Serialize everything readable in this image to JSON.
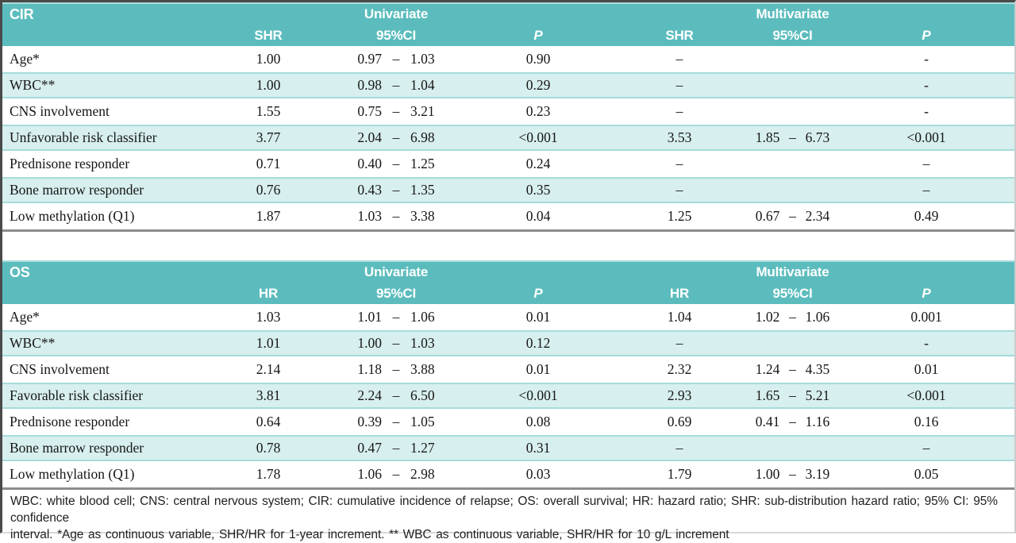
{
  "colors": {
    "header_teal": "#5cbcbd",
    "header_top_edge": "#a9dcdc",
    "shaded_row_bg": "#d7efee",
    "shaded_row_border": "#a5dbda",
    "table_bottom_rule": "#8d8d8d",
    "header_text": "#ffffff",
    "body_text": "#161616"
  },
  "tables": [
    {
      "title": "CIR",
      "univariate_label": "Univariate",
      "multivariate_label": "Multivariate",
      "estimate_header": "SHR",
      "ci_header": "95%CI",
      "p_header": "P",
      "rows": [
        {
          "label": "Age*",
          "shaded": false,
          "uni": {
            "est": "1.00",
            "ci_low": "0.97",
            "ci_dash": "–",
            "ci_high": "1.03",
            "p": "0.90"
          },
          "multi": {
            "est": "–",
            "ci_low": "",
            "ci_dash": "",
            "ci_high": "",
            "p": "-"
          }
        },
        {
          "label": "WBC**",
          "shaded": true,
          "uni": {
            "est": "1.00",
            "ci_low": "0.98",
            "ci_dash": "–",
            "ci_high": "1.04",
            "p": "0.29"
          },
          "multi": {
            "est": "–",
            "ci_low": "",
            "ci_dash": "",
            "ci_high": "",
            "p": "-"
          }
        },
        {
          "label": "CNS involvement",
          "shaded": false,
          "uni": {
            "est": "1.55",
            "ci_low": "0.75",
            "ci_dash": "–",
            "ci_high": "3.21",
            "p": "0.23"
          },
          "multi": {
            "est": "–",
            "ci_low": "",
            "ci_dash": "",
            "ci_high": "",
            "p": "-"
          }
        },
        {
          "label": "Unfavorable risk classifier",
          "shaded": true,
          "uni": {
            "est": "3.77",
            "ci_low": "2.04",
            "ci_dash": "–",
            "ci_high": "6.98",
            "p": "<0.001"
          },
          "multi": {
            "est": "3.53",
            "ci_low": "1.85",
            "ci_dash": "–",
            "ci_high": "6.73",
            "p": "<0.001"
          }
        },
        {
          "label": "Prednisone responder",
          "shaded": false,
          "uni": {
            "est": "0.71",
            "ci_low": "0.40",
            "ci_dash": "–",
            "ci_high": "1.25",
            "p": "0.24"
          },
          "multi": {
            "est": "–",
            "ci_low": "",
            "ci_dash": "",
            "ci_high": "",
            "p": "–"
          }
        },
        {
          "label": "Bone marrow responder",
          "shaded": true,
          "uni": {
            "est": "0.76",
            "ci_low": "0.43",
            "ci_dash": "–",
            "ci_high": "1.35",
            "p": "0.35"
          },
          "multi": {
            "est": "–",
            "ci_low": "",
            "ci_dash": "",
            "ci_high": "",
            "p": "–"
          }
        },
        {
          "label": "Low methylation (Q1)",
          "shaded": false,
          "uni": {
            "est": "1.87",
            "ci_low": "1.03",
            "ci_dash": "–",
            "ci_high": "3.38",
            "p": "0.04"
          },
          "multi": {
            "est": "1.25",
            "ci_low": "0.67",
            "ci_dash": "–",
            "ci_high": "2.34",
            "p": "0.49"
          }
        }
      ]
    },
    {
      "title": "OS",
      "univariate_label": "Univariate",
      "multivariate_label": "Multivariate",
      "estimate_header": "HR",
      "ci_header": "95%CI",
      "p_header": "P",
      "rows": [
        {
          "label": "Age*",
          "shaded": false,
          "uni": {
            "est": "1.03",
            "ci_low": "1.01",
            "ci_dash": "–",
            "ci_high": "1.06",
            "p": "0.01"
          },
          "multi": {
            "est": "1.04",
            "ci_low": "1.02",
            "ci_dash": "–",
            "ci_high": "1.06",
            "p": "0.001"
          }
        },
        {
          "label": "WBC**",
          "shaded": true,
          "uni": {
            "est": "1.01",
            "ci_low": "1.00",
            "ci_dash": "–",
            "ci_high": "1.03",
            "p": "0.12"
          },
          "multi": {
            "est": "–",
            "ci_low": "",
            "ci_dash": "",
            "ci_high": "",
            "p": "-"
          }
        },
        {
          "label": "CNS involvement",
          "shaded": false,
          "uni": {
            "est": "2.14",
            "ci_low": "1.18",
            "ci_dash": "–",
            "ci_high": "3.88",
            "p": "0.01"
          },
          "multi": {
            "est": "2.32",
            "ci_low": "1.24",
            "ci_dash": "–",
            "ci_high": "4.35",
            "p": "0.01"
          }
        },
        {
          "label": "Favorable risk classifier",
          "shaded": true,
          "uni": {
            "est": "3.81",
            "ci_low": "2.24",
            "ci_dash": "–",
            "ci_high": "6.50",
            "p": "<0.001"
          },
          "multi": {
            "est": "2.93",
            "ci_low": "1.65",
            "ci_dash": "–",
            "ci_high": "5.21",
            "p": "<0.001"
          }
        },
        {
          "label": "Prednisone responder",
          "shaded": false,
          "uni": {
            "est": "0.64",
            "ci_low": "0.39",
            "ci_dash": "–",
            "ci_high": "1.05",
            "p": "0.08"
          },
          "multi": {
            "est": "0.69",
            "ci_low": "0.41",
            "ci_dash": "–",
            "ci_high": "1.16",
            "p": "0.16"
          }
        },
        {
          "label": "Bone marrow responder",
          "shaded": true,
          "uni": {
            "est": "0.78",
            "ci_low": "0.47",
            "ci_dash": "–",
            "ci_high": "1.27",
            "p": "0.31"
          },
          "multi": {
            "est": "–",
            "ci_low": "",
            "ci_dash": "",
            "ci_high": "",
            "p": "–"
          }
        },
        {
          "label": "Low methylation (Q1)",
          "shaded": false,
          "uni": {
            "est": "1.78",
            "ci_low": "1.06",
            "ci_dash": "–",
            "ci_high": "2.98",
            "p": "0.03"
          },
          "multi": {
            "est": "1.79",
            "ci_low": "1.00",
            "ci_dash": "–",
            "ci_high": "3.19",
            "p": "0.05"
          }
        }
      ]
    }
  ],
  "footnote": {
    "line1": "WBC: white blood cell; CNS: central nervous system; CIR: cumulative incidence of relapse;  OS: overall survival; HR: hazard ratio; SHR: sub-distribution hazard ratio;  95% CI: 95% confidence",
    "line2": "interval. *Age as continuous variable,  SHR/HR for 1-year increment. ** WBC as continuous variable,  SHR/HR for 10 g/L increment"
  }
}
